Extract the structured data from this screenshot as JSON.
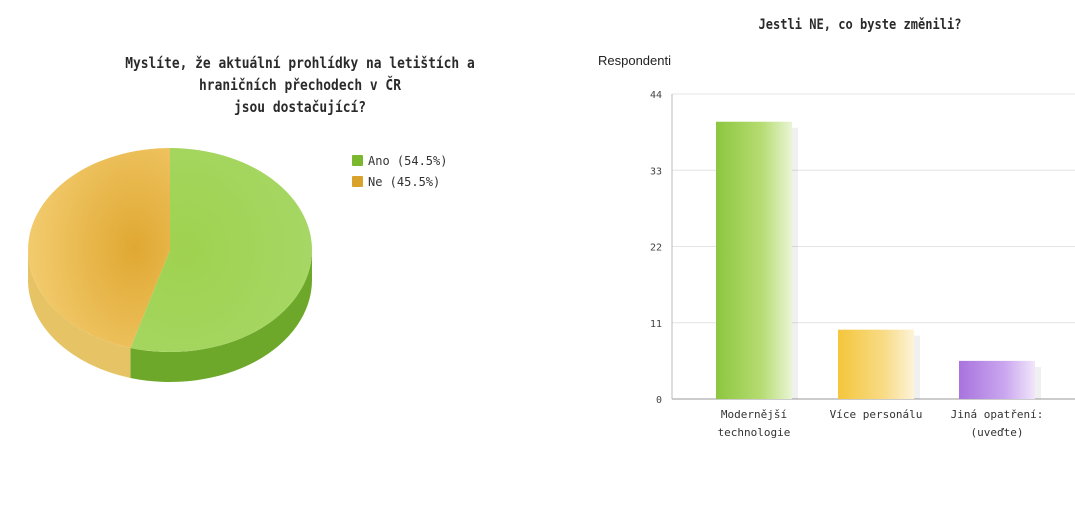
{
  "chart_data": [
    {
      "type": "pie",
      "title_line1": "Myslíte, že aktuální prohlídky na letištích a hraničních přechodech v ČR",
      "title_line2": "jsou dostačující?",
      "slices": [
        {
          "label": "Ano",
          "value": 54.5,
          "legend": "Ano (54.5%)",
          "color": "#8cc63f",
          "side_color": "#6ea82a"
        },
        {
          "label": "Ne",
          "value": 45.5,
          "legend": "Ne (45.5%)",
          "color": "#f2c94c",
          "side_color": "#e6c466"
        }
      ],
      "legend_position": "right"
    },
    {
      "type": "bar",
      "title": "Jestli NE, co byste změnili?",
      "ylabel": "Respondenti",
      "ylim": [
        0,
        44
      ],
      "yticks": [
        0,
        11,
        22,
        33,
        44
      ],
      "categories": [
        {
          "line1": "Modernější",
          "line2": "technologie"
        },
        {
          "line1": "Více personálu",
          "line2": ""
        },
        {
          "line1": "Jiná opatření:",
          "line2": "(uveďte)"
        }
      ],
      "values": [
        40,
        10,
        5.5
      ],
      "colors": [
        "#8cc63f",
        "#f2c94c",
        "#b07fe0"
      ],
      "grid": true
    }
  ]
}
